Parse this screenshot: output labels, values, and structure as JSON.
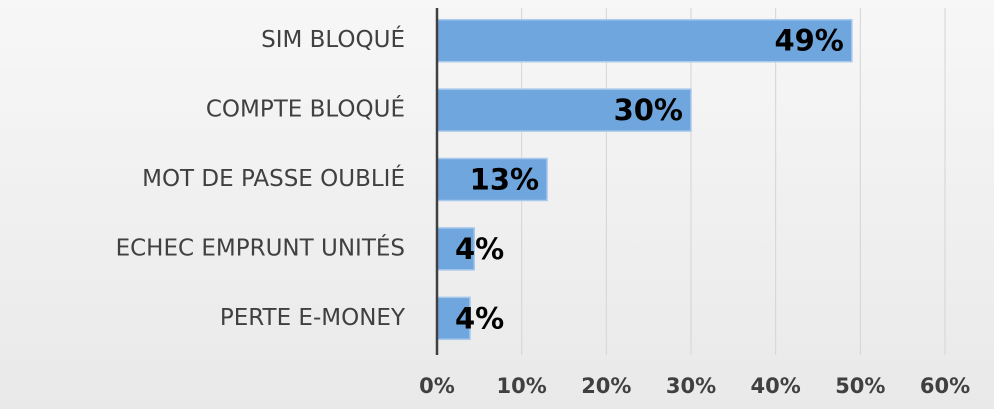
{
  "chart_data": {
    "type": "hbar",
    "categories": [
      "SIM BLOQUÉ",
      "COMPTE BLOQUÉ",
      "MOT DE PASSE OUBLIÉ",
      "ECHEC EMPRUNT UNITÉS",
      "PERTE E-MONEY"
    ],
    "values": [
      49,
      30,
      13,
      4.4,
      3.9
    ],
    "value_labels": [
      "49%",
      "30%",
      "13%",
      "4%",
      "4%"
    ],
    "color": "#6fa6dd",
    "xlim": [
      0,
      60
    ],
    "xticks": [
      {
        "value": 0,
        "label": "0%"
      },
      {
        "value": 10,
        "label": "10%"
      },
      {
        "value": 20,
        "label": "20%"
      },
      {
        "value": 30,
        "label": "30%"
      },
      {
        "value": 40,
        "label": "40%"
      },
      {
        "value": 50,
        "label": "50%"
      },
      {
        "value": 60,
        "label": "60%"
      }
    ],
    "grid": true
  }
}
